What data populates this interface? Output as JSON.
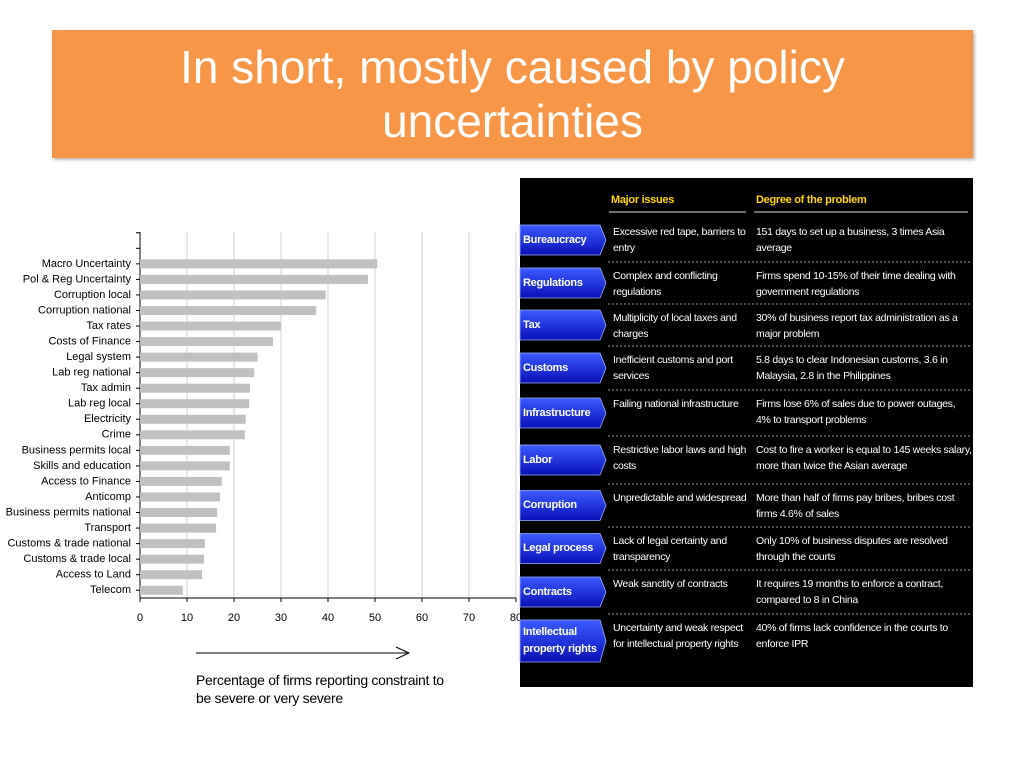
{
  "title": "In short, mostly caused by policy uncertainties",
  "chart_data": {
    "type": "hbar",
    "categories": [
      null,
      null,
      "Macro Uncertainty",
      "Pol &  Reg Uncertainty",
      "Corruption  local",
      "Corruption national",
      "Tax rates",
      "Costs of Finance",
      "Legal system",
      "Lab reg national",
      "Tax admin",
      "Lab reg local",
      "Electricity",
      "Crime",
      "Business permits local",
      "Skills and education",
      "Access to Finance",
      "Anticomp",
      "Business permits national",
      "Transport",
      "Customs & trade national",
      "Customs & trade local",
      "Access to Land",
      "Telecom"
    ],
    "values": [
      null,
      null,
      50.5,
      48.5,
      39.5,
      37.5,
      30,
      28.3,
      25,
      24.3,
      23.4,
      23.2,
      22.5,
      22.3,
      19.1,
      19.1,
      17.4,
      17,
      16.4,
      16.2,
      13.8,
      13.6,
      13.2,
      9.1
    ],
    "color": "#c0c0c0",
    "xlim": [
      0,
      80
    ],
    "xticks": [
      0,
      10,
      20,
      30,
      40,
      50,
      60,
      70,
      80
    ],
    "grid": true,
    "x_label": "Percentage of firms reporting constraint to be severe or very severe"
  },
  "table": {
    "headers": [
      "Major issues",
      "Degree of the problem"
    ],
    "rows": [
      [
        "Bureaucracy",
        "Excessive red tape, barriers to entry",
        "151 days to set up a business, 3 times Asia average"
      ],
      [
        "Regulations",
        "Complex and conflicting regulations",
        "Firms spend 10-15% of their time dealing with government regulations"
      ],
      [
        "Tax",
        "Multiplicity of local taxes and charges",
        "30% of business report tax administration as a major problem"
      ],
      [
        "Customs",
        "Inefficient customs and port services",
        "5.8 days to clear Indonesian customs, 3.6 in Malaysia, 2.8 in the Philippines"
      ],
      [
        "Infrastructure",
        "Failing national infrastructure",
        "Firms lose 6% of sales due to power outages, 4% to transport problems"
      ],
      [
        "Labor",
        "Restrictive labor laws and high costs",
        "Cost to fire a worker is equal to 145 weeks salary, more than twice the Asian average"
      ],
      [
        "Corruption",
        "Unpredictable and widespread",
        "More than half of firms pay bribes, bribes cost firms 4.6% of sales"
      ],
      [
        "Legal process",
        "Lack of legal certainty and transparency",
        "Only 10% of business disputes are resolved through the courts"
      ],
      [
        "Contracts",
        "Weak sanctity of contracts",
        "It requires 19 months to enforce a contract, compared to 8 in China"
      ],
      [
        "Intellectual property rights",
        "Uncertainty and weak respect for intellectual property rights",
        "40% of firms lack confidence in the courts to enforce IPR"
      ]
    ]
  }
}
